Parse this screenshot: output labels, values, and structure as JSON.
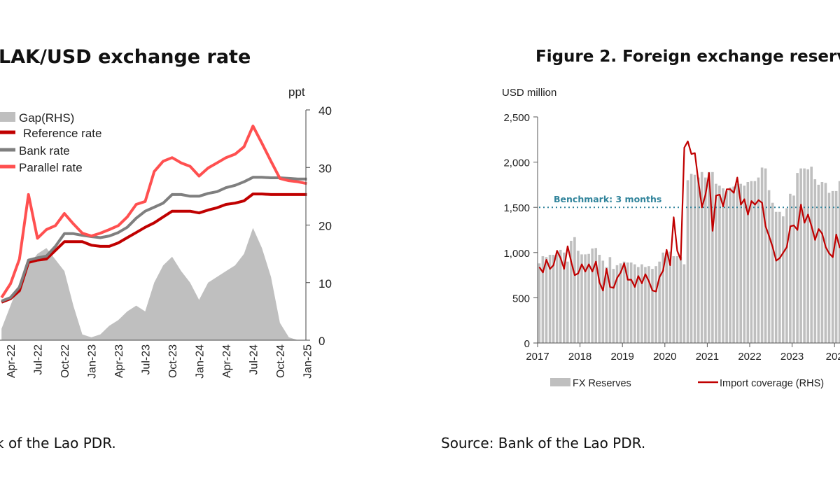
{
  "chart_data": [
    {
      "type": "line",
      "title": "LAK/USD exchange rate",
      "source": "k of the Lao PDR.",
      "right_axis_unit": "ppt",
      "right_ylim": [
        0,
        40
      ],
      "right_ticks": [
        "0",
        "10",
        "20",
        "30",
        "40"
      ],
      "x_ticks": [
        "Apr-22",
        "Jul-22",
        "Oct-22",
        "Jan-23",
        "Apr-23",
        "Jul-23",
        "Oct-23",
        "Jan-24",
        "Apr-24",
        "Jul-24",
        "Oct-24",
        "Jan-25"
      ],
      "legend": [
        "Gap(RHS)",
        "Reference rate",
        "Bank rate",
        "Parallel rate"
      ],
      "legend_placement": "top-left",
      "grid": false,
      "colors": {
        "gap": "#bfbfbf",
        "reference": "#c00000",
        "bank": "#7f7f7f",
        "parallel": "#ff5050"
      },
      "x": [
        "2022-03",
        "2022-04",
        "2022-05",
        "2022-06",
        "2022-07",
        "2022-08",
        "2022-09",
        "2022-10",
        "2022-11",
        "2022-12",
        "2023-01",
        "2023-02",
        "2023-03",
        "2023-04",
        "2023-05",
        "2023-06",
        "2023-07",
        "2023-08",
        "2023-09",
        "2023-10",
        "2023-11",
        "2023-12",
        "2024-01",
        "2024-02",
        "2024-03",
        "2024-04",
        "2024-05",
        "2024-06",
        "2024-07",
        "2024-08",
        "2024-09",
        "2024-10",
        "2024-11",
        "2024-12",
        "2025-01"
      ],
      "series": [
        {
          "name": "Gap(RHS)",
          "type": "area",
          "axis": "right",
          "values": [
            2,
            6,
            10,
            13,
            15,
            16,
            14,
            12,
            6,
            1,
            0.5,
            1,
            2.5,
            3.5,
            5,
            6,
            5,
            10,
            13,
            14.5,
            12,
            10,
            7,
            10,
            11,
            12,
            13,
            15,
            19.5,
            16,
            11,
            3,
            0.5,
            0,
            0
          ]
        },
        {
          "name": "Reference rate",
          "axis": "left",
          "values": [
            11200,
            11540,
            12340,
            15150,
            15380,
            15490,
            16350,
            17210,
            17210,
            17210,
            16860,
            16750,
            16750,
            17090,
            17610,
            18120,
            18640,
            19090,
            19670,
            20240,
            20240,
            20240,
            20070,
            20350,
            20580,
            20920,
            21040,
            21270,
            21950,
            21950,
            21900,
            21900,
            21900,
            21900,
            21900
          ]
        },
        {
          "name": "Bank rate",
          "axis": "left",
          "values": [
            11310,
            11660,
            12690,
            15380,
            15600,
            15780,
            16750,
            18010,
            18010,
            17840,
            17720,
            17610,
            17780,
            18120,
            18640,
            19550,
            20240,
            20640,
            21040,
            21900,
            21900,
            21730,
            21730,
            22010,
            22180,
            22580,
            22810,
            23160,
            23610,
            23610,
            23560,
            23560,
            23500,
            23440,
            23440
          ]
        },
        {
          "name": "Parallel rate",
          "axis": "left",
          "values": [
            11660,
            13030,
            15490,
            21900,
            17550,
            18410,
            18810,
            20010,
            18980,
            18060,
            17780,
            18060,
            18410,
            18810,
            19670,
            20920,
            21210,
            24180,
            25210,
            25560,
            25040,
            24700,
            23730,
            24530,
            25040,
            25560,
            25900,
            26640,
            28700,
            26990,
            25210,
            23500,
            23270,
            23160,
            22980
          ]
        }
      ]
    },
    {
      "type": "bar",
      "title": "Figure 2. Foreign exchange reserv",
      "source": "Source: Bank of the Lao PDR.",
      "ylabel": "USD million",
      "ylim": [
        0,
        2500
      ],
      "y_ticks": [
        "0",
        "500",
        "1,000",
        "1,500",
        "2,000",
        "2,500"
      ],
      "x_ticks": [
        "2017",
        "2018",
        "2019",
        "2020",
        "2021",
        "2022",
        "2023",
        "202"
      ],
      "benchmark": {
        "label": "Benchmark: 3 months",
        "value": 1500,
        "color": "#31849b"
      },
      "legend": [
        "FX Reserves",
        "Import coverage (RHS)"
      ],
      "legend_placement": "bottom",
      "grid": false,
      "colors": {
        "bars": "#bfbfbf",
        "line": "#c00000"
      },
      "x_start": "2017-01",
      "series": [
        {
          "name": "FX Reserves",
          "type": "bar",
          "values": [
            880,
            960,
            950,
            975,
            975,
            1000,
            1030,
            1000,
            900,
            1130,
            1170,
            1020,
            980,
            980,
            985,
            1045,
            1050,
            975,
            910,
            840,
            950,
            820,
            860,
            880,
            900,
            890,
            890,
            870,
            840,
            870,
            840,
            850,
            820,
            850,
            900,
            1000,
            1000,
            1010,
            960,
            960,
            950,
            870,
            1800,
            1870,
            1860,
            1830,
            1890,
            1830,
            1890,
            1890,
            1760,
            1740,
            1710,
            1680,
            1720,
            1730,
            1760,
            1760,
            1740,
            1780,
            1790,
            1790,
            1830,
            1940,
            1930,
            1690,
            1550,
            1450,
            1450,
            1400,
            1490,
            1650,
            1630,
            1880,
            1930,
            1930,
            1920,
            1950,
            1810,
            1750,
            1780,
            1770,
            1660,
            1680,
            1680,
            1790
          ]
        },
        {
          "name": "Import coverage (RHS)",
          "type": "line",
          "unit": "months",
          "values": [
            1.68,
            1.56,
            1.84,
            1.64,
            1.72,
            2.04,
            1.88,
            1.64,
            2.14,
            1.8,
            1.5,
            1.54,
            1.74,
            1.58,
            1.74,
            1.58,
            1.8,
            1.34,
            1.16,
            1.64,
            1.24,
            1.22,
            1.44,
            1.56,
            1.76,
            1.4,
            1.4,
            1.24,
            1.48,
            1.32,
            1.52,
            1.36,
            1.16,
            1.14,
            1.46,
            1.6,
            2.06,
            1.72,
            2.78,
            2.04,
            1.84,
            4.32,
            4.46,
            4.18,
            4.2,
            3.56,
            3.0,
            3.28,
            3.76,
            2.48,
            3.26,
            3.28,
            3.02,
            3.4,
            3.4,
            3.32,
            3.66,
            3.06,
            3.18,
            2.84,
            3.14,
            3.06,
            3.16,
            3.1,
            2.58,
            2.36,
            2.12,
            1.82,
            1.88,
            2.0,
            2.12,
            2.58,
            2.6,
            2.5,
            3.06,
            2.66,
            2.84,
            2.58,
            2.28,
            2.52,
            2.42,
            2.12,
            1.98,
            1.9,
            2.4,
            2.1
          ]
        }
      ]
    }
  ]
}
